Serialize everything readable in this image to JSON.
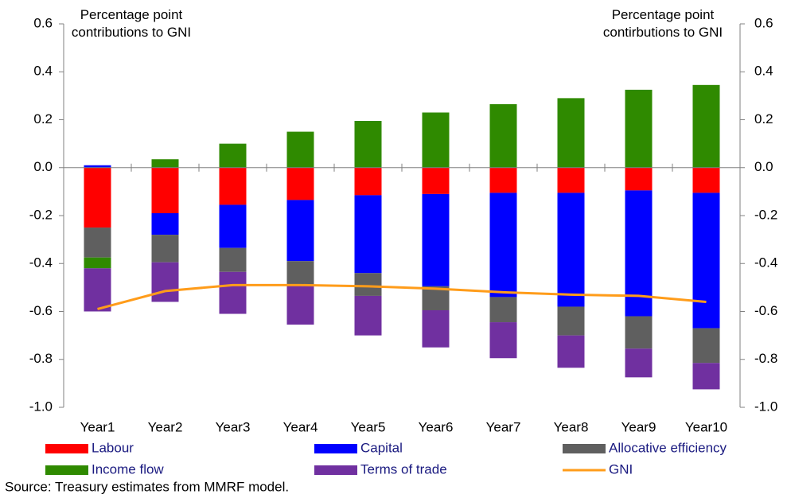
{
  "chart_data": {
    "type": "bar",
    "stacked": true,
    "ylabel": "Percentage point contributions to GNI",
    "y2label": "Percentage point contirbutions to GNI",
    "source": "Source: Treasury estimates from MMRF model.",
    "categories": [
      "Year1",
      "Year2",
      "Year3",
      "Year4",
      "Year5",
      "Year6",
      "Year7",
      "Year8",
      "Year9",
      "Year10"
    ],
    "series": [
      {
        "name": "Labour",
        "color": "#ff0000",
        "values": [
          -0.25,
          -0.19,
          -0.155,
          -0.135,
          -0.115,
          -0.11,
          -0.105,
          -0.105,
          -0.095,
          -0.105
        ]
      },
      {
        "name": "Capital",
        "color": "#0000ff",
        "values": [
          0.01,
          -0.09,
          -0.18,
          -0.255,
          -0.325,
          -0.385,
          -0.435,
          -0.475,
          -0.525,
          -0.565
        ]
      },
      {
        "name": "Allocative efficiency",
        "color": "#5f5f5f",
        "values": [
          -0.125,
          -0.115,
          -0.1,
          -0.1,
          -0.095,
          -0.1,
          -0.105,
          -0.12,
          -0.135,
          -0.145
        ]
      },
      {
        "name": "Income flow",
        "color": "#2f8a00",
        "values": [
          -0.045,
          0.035,
          0.1,
          0.15,
          0.195,
          0.23,
          0.265,
          0.29,
          0.325,
          0.345
        ]
      },
      {
        "name": "Terms of trade",
        "color": "#7030a0",
        "values": [
          -0.18,
          -0.165,
          -0.175,
          -0.165,
          -0.165,
          -0.155,
          -0.15,
          -0.135,
          -0.12,
          -0.11
        ]
      },
      {
        "name": "GNI",
        "type": "line",
        "color": "#ff9c1a",
        "values": [
          -0.59,
          -0.515,
          -0.49,
          -0.49,
          -0.495,
          -0.505,
          -0.52,
          -0.53,
          -0.535,
          -0.56
        ]
      }
    ],
    "ylim": [
      -1.0,
      0.6
    ],
    "yticks": [
      {
        "value": -1.0,
        "label": "-1.0"
      },
      {
        "value": -0.8,
        "label": "-0.8"
      },
      {
        "value": -0.6,
        "label": "-0.6"
      },
      {
        "value": -0.4,
        "label": "-0.4"
      },
      {
        "value": -0.2,
        "label": "-0.2"
      },
      {
        "value": 0,
        "label": "0.0"
      },
      {
        "value": 0.2,
        "label": "0.2"
      },
      {
        "value": 0.4,
        "label": "0.4"
      },
      {
        "value": 0.6,
        "label": "0.6"
      }
    ],
    "y2lim": [
      -1.0,
      0.6
    ],
    "y2ticks": [
      {
        "value": -1.0,
        "label": "-1.0"
      },
      {
        "value": -0.8,
        "label": "-0.8"
      },
      {
        "value": -0.6,
        "label": "-0.6"
      },
      {
        "value": -0.4,
        "label": "-0.4"
      },
      {
        "value": -0.2,
        "label": "-0.2"
      },
      {
        "value": 0,
        "label": "0.0"
      },
      {
        "value": 0.2,
        "label": "0.2"
      },
      {
        "value": 0.4,
        "label": "0.4"
      },
      {
        "value": 0.6,
        "label": "0.6"
      }
    ],
    "grid": false,
    "legend": "bottom"
  }
}
